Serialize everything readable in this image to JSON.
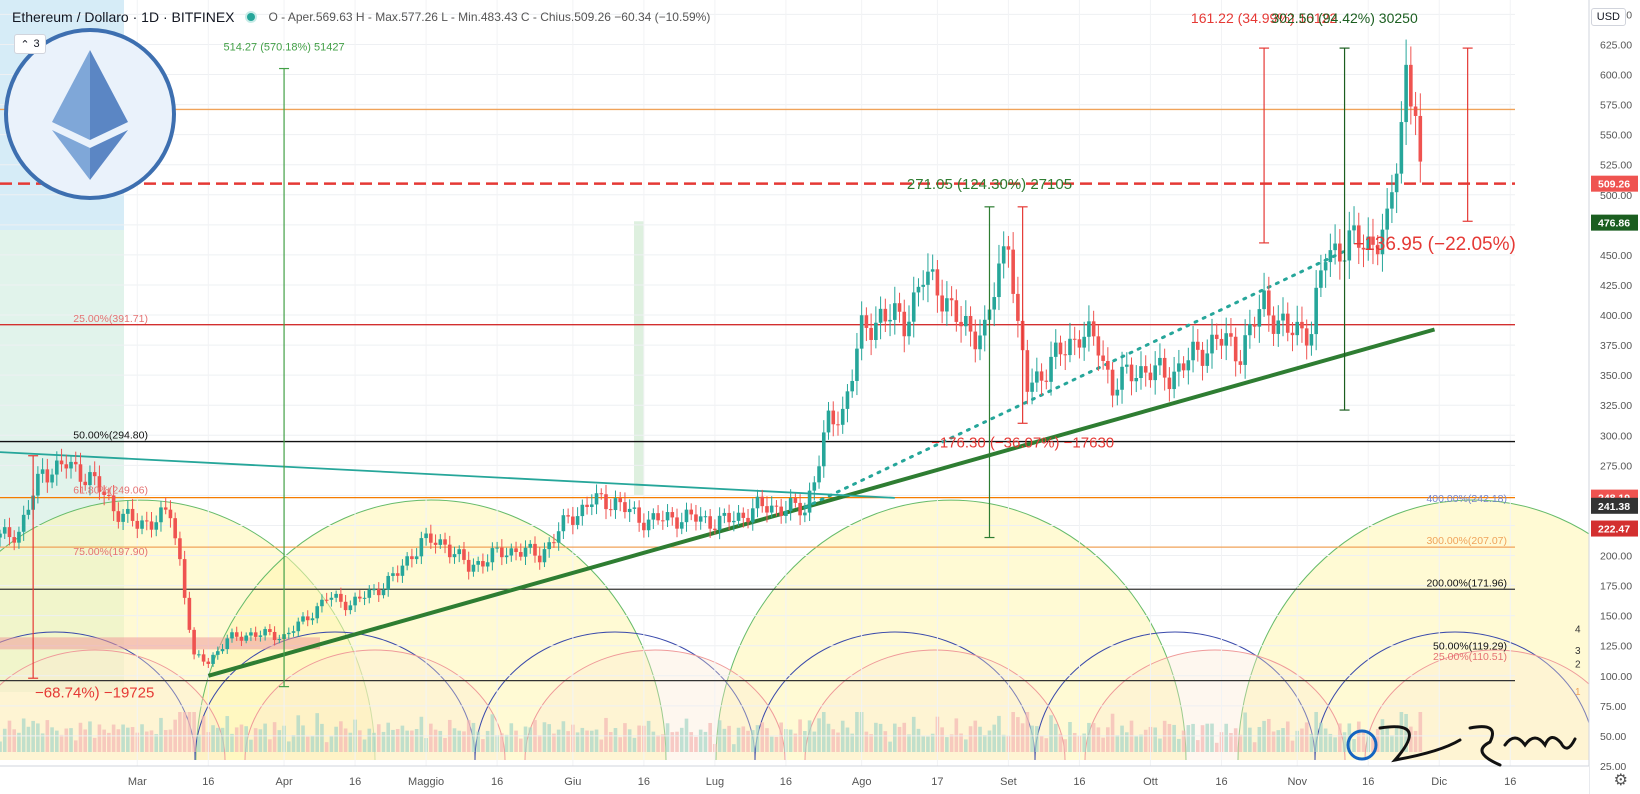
{
  "header": {
    "symbol": "Ethereum / Dollaro · 1D · BITFINEX",
    "ohlc": "O - Aper.569.63 H - Max.577.26 L - Min.483.43 C - Chius.509.26 −60.34 (−10.59%)",
    "collapse_label": "3",
    "currency": "USD"
  },
  "chart_data": {
    "type": "candlestick",
    "y_axis": {
      "range": [
        25,
        662
      ],
      "ticks": [
        25,
        50,
        75,
        100,
        125,
        150,
        175,
        200,
        225,
        250,
        275,
        300,
        325,
        350,
        375,
        400,
        425,
        450,
        475,
        500,
        525,
        550,
        575,
        600,
        625,
        650
      ],
      "tick_labels": [
        "25.00",
        "50.00",
        "75.00",
        "100.00",
        "125.00",
        "150.00",
        "175.00",
        "200.00",
        "225.00",
        "250.00",
        "275.00",
        "300.00",
        "325.00",
        "350.00",
        "375.00",
        "400.00",
        "425.00",
        "450.00",
        "475.00",
        "500.00",
        "525.00",
        "550.00",
        "575.00",
        "600.00",
        "625.00",
        "650.00"
      ]
    },
    "x_axis": {
      "range": [
        "2020-02-01",
        "2020-12-17"
      ],
      "ticks": [
        {
          "date": "2020-03-01",
          "label": "Mar"
        },
        {
          "date": "2020-03-16",
          "label": "16"
        },
        {
          "date": "2020-04-01",
          "label": "Apr"
        },
        {
          "date": "2020-04-16",
          "label": "16"
        },
        {
          "date": "2020-05-01",
          "label": "Maggio"
        },
        {
          "date": "2020-05-16",
          "label": "16"
        },
        {
          "date": "2020-06-01",
          "label": "Giu"
        },
        {
          "date": "2020-06-16",
          "label": "16"
        },
        {
          "date": "2020-07-01",
          "label": "Lug"
        },
        {
          "date": "2020-07-16",
          "label": "16"
        },
        {
          "date": "2020-08-01",
          "label": "Ago"
        },
        {
          "date": "2020-08-17",
          "label": "17"
        },
        {
          "date": "2020-09-01",
          "label": "Set"
        },
        {
          "date": "2020-09-16",
          "label": "16"
        },
        {
          "date": "2020-10-01",
          "label": "Ott"
        },
        {
          "date": "2020-10-16",
          "label": "16"
        },
        {
          "date": "2020-11-01",
          "label": "Nov"
        },
        {
          "date": "2020-11-16",
          "label": "16"
        },
        {
          "date": "2020-12-01",
          "label": "Dic"
        },
        {
          "date": "2020-12-16",
          "label": "16"
        }
      ]
    },
    "price_path": [
      [
        "2020-02-01",
        215
      ],
      [
        "2020-02-05",
        220
      ],
      [
        "2020-02-10",
        270
      ],
      [
        "2020-02-15",
        275
      ],
      [
        "2020-02-20",
        265
      ],
      [
        "2020-02-25",
        240
      ],
      [
        "2020-03-01",
        225
      ],
      [
        "2020-03-08",
        235
      ],
      [
        "2020-03-10",
        195
      ],
      [
        "2020-03-13",
        115
      ],
      [
        "2020-03-16",
        112
      ],
      [
        "2020-03-20",
        130
      ],
      [
        "2020-03-25",
        135
      ],
      [
        "2020-04-01",
        133
      ],
      [
        "2020-04-05",
        145
      ],
      [
        "2020-04-10",
        165
      ],
      [
        "2020-04-15",
        160
      ],
      [
        "2020-04-20",
        170
      ],
      [
        "2020-04-25",
        185
      ],
      [
        "2020-04-30",
        212
      ],
      [
        "2020-05-05",
        210
      ],
      [
        "2020-05-10",
        190
      ],
      [
        "2020-05-15",
        200
      ],
      [
        "2020-05-20",
        205
      ],
      [
        "2020-05-25",
        200
      ],
      [
        "2020-05-31",
        230
      ],
      [
        "2020-06-05",
        245
      ],
      [
        "2020-06-10",
        245
      ],
      [
        "2020-06-15",
        230
      ],
      [
        "2020-06-20",
        230
      ],
      [
        "2020-06-25",
        232
      ],
      [
        "2020-07-01",
        228
      ],
      [
        "2020-07-05",
        230
      ],
      [
        "2020-07-10",
        240
      ],
      [
        "2020-07-15",
        240
      ],
      [
        "2020-07-20",
        238
      ],
      [
        "2020-07-22",
        265
      ],
      [
        "2020-07-25",
        310
      ],
      [
        "2020-07-28",
        320
      ],
      [
        "2020-08-01",
        385
      ],
      [
        "2020-08-05",
        400
      ],
      [
        "2020-08-10",
        395
      ],
      [
        "2020-08-14",
        430
      ],
      [
        "2020-08-17",
        425
      ],
      [
        "2020-08-22",
        390
      ],
      [
        "2020-08-27",
        385
      ],
      [
        "2020-09-01",
        470
      ],
      [
        "2020-09-03",
        385
      ],
      [
        "2020-09-05",
        340
      ],
      [
        "2020-09-10",
        360
      ],
      [
        "2020-09-16",
        385
      ],
      [
        "2020-09-20",
        375
      ],
      [
        "2020-09-23",
        340
      ],
      [
        "2020-09-28",
        355
      ],
      [
        "2020-10-05",
        350
      ],
      [
        "2020-10-10",
        365
      ],
      [
        "2020-10-15",
        380
      ],
      [
        "2020-10-20",
        370
      ],
      [
        "2020-10-25",
        410
      ],
      [
        "2020-10-30",
        385
      ],
      [
        "2020-11-04",
        390
      ],
      [
        "2020-11-07",
        450
      ],
      [
        "2020-11-12",
        460
      ],
      [
        "2020-11-16",
        460
      ],
      [
        "2020-11-20",
        470
      ],
      [
        "2020-11-23",
        560
      ],
      [
        "2020-11-24",
        605
      ],
      [
        "2020-11-26",
        570
      ],
      [
        "2020-11-27",
        509
      ]
    ],
    "last_price": 509.26,
    "price_labels": [
      {
        "value": 509.26,
        "text": "509.26",
        "color": "#ef5350"
      },
      {
        "value": 476.86,
        "text": "476.86",
        "color": "#1b5e20"
      },
      {
        "value": 248.19,
        "text": "248.19",
        "color": "#ef5350"
      },
      {
        "value": 241.38,
        "text": "241.38",
        "color": "#333333"
      },
      {
        "value": 222.47,
        "text": "222.47",
        "color": "#d32f2f"
      }
    ],
    "horizontal_levels": [
      {
        "value": 571,
        "color": "#f0a35a"
      },
      {
        "value": 392,
        "color": "#d32f2f"
      },
      {
        "value": 294.8,
        "color": "#111111"
      },
      {
        "value": 248.19,
        "color": "#f57c00"
      },
      {
        "value": 207,
        "color": "#f0a35a"
      },
      {
        "value": 172,
        "color": "#333333"
      },
      {
        "value": 96,
        "color": "#333333"
      }
    ],
    "fib_labels": [
      {
        "value": 391.71,
        "text": "25.00%(391.71)",
        "side": "left",
        "color": "#e57373"
      },
      {
        "value": 294.8,
        "text": "50.00%(294.80)",
        "side": "left",
        "color": "#111111"
      },
      {
        "value": 249.06,
        "text": "61.80%(249.06)",
        "side": "left",
        "color": "#e57373"
      },
      {
        "value": 197.9,
        "text": "75.00%(197.90)",
        "side": "left",
        "color": "#e57373"
      },
      {
        "value": 242.18,
        "text": "400.00%(242.18)",
        "side": "right",
        "color": "#7986cb"
      },
      {
        "value": 207.07,
        "text": "300.00%(207.07)",
        "side": "right",
        "color": "#f0a35a"
      },
      {
        "value": 171.96,
        "text": "200.00%(171.96)",
        "side": "right",
        "color": "#111111"
      },
      {
        "value": 119.29,
        "text": "50.00%(119.29)",
        "side": "right",
        "color": "#111111"
      },
      {
        "value": 110.51,
        "text": "25.00%(110.51)",
        "side": "right",
        "color": "#e57373"
      }
    ],
    "measurements": [
      {
        "text": "514.27 (570.18%) 51427",
        "color": "#43a047"
      },
      {
        "text": "161.22 (34.99%) 16122",
        "color": "#e53935"
      },
      {
        "text": "302.50 (94.42%) 30250",
        "color": "#1b5e20"
      },
      {
        "text": "271.05 (124.30%) 27105",
        "color": "#2e7d32"
      },
      {
        "text": "−176.30 (−36.07%) −17630",
        "color": "#e53935"
      },
      {
        "text": "−136.95 (−22.05%)",
        "color": "#e53935"
      },
      {
        "text": "−68.74%) −19725",
        "color": "#e53935"
      }
    ],
    "cycle_markers": [
      "4",
      "3",
      "2",
      "1"
    ]
  },
  "watermark": "@ Zio Romolo",
  "icons": {
    "logo": "ethereum-logo",
    "settings": "gear-icon"
  }
}
